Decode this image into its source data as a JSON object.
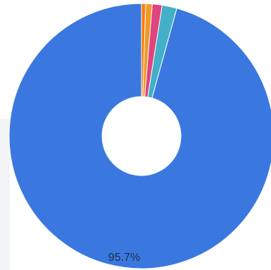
{
  "chart_data": {
    "type": "pie",
    "style": "donut",
    "title": "",
    "slices": [
      {
        "label": "",
        "value": 95.7,
        "color": "#3a78e0",
        "display": "95.7%"
      },
      {
        "label": "",
        "value": 1.8,
        "color": "#43b0c8",
        "display": ""
      },
      {
        "label": "",
        "value": 1.2,
        "color": "#e0447e",
        "display": ""
      },
      {
        "label": "",
        "value": 0.8,
        "color": "#f09a2a",
        "display": ""
      },
      {
        "label": "",
        "value": 0.5,
        "color": "#ff7a00",
        "display": ""
      }
    ]
  }
}
